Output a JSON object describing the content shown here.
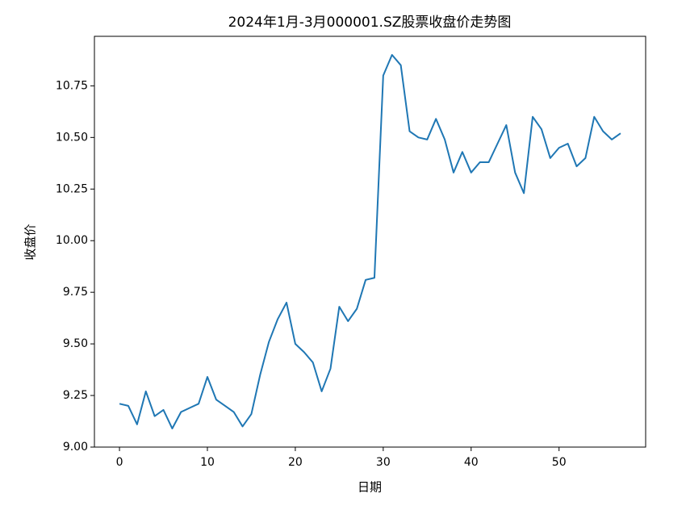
{
  "chart_data": {
    "type": "line",
    "title": "2024年1月-3月000001.SZ股票收盘价走势图",
    "xlabel": "日期",
    "ylabel": "收盘价",
    "x": [
      0,
      1,
      2,
      3,
      4,
      5,
      6,
      7,
      8,
      9,
      10,
      11,
      12,
      13,
      14,
      15,
      16,
      17,
      18,
      19,
      20,
      21,
      22,
      23,
      24,
      25,
      26,
      27,
      28,
      29,
      30,
      31,
      32,
      33,
      34,
      35,
      36,
      37,
      38,
      39,
      40,
      41,
      42,
      43,
      44,
      45,
      46,
      47,
      48,
      49,
      50,
      51,
      52,
      53,
      54,
      55,
      56,
      57
    ],
    "values": [
      9.21,
      9.2,
      9.11,
      9.27,
      9.15,
      9.18,
      9.09,
      9.17,
      9.19,
      9.21,
      9.34,
      9.23,
      9.2,
      9.17,
      9.1,
      9.16,
      9.35,
      9.51,
      9.62,
      9.7,
      9.5,
      9.46,
      9.41,
      9.27,
      9.38,
      9.68,
      9.61,
      9.67,
      9.81,
      9.82,
      10.8,
      10.9,
      10.85,
      10.53,
      10.5,
      10.49,
      10.59,
      10.49,
      10.33,
      10.43,
      10.33,
      10.38,
      10.38,
      10.47,
      10.56,
      10.33,
      10.23,
      10.6,
      10.54,
      10.4,
      10.45,
      10.47,
      10.36,
      10.4,
      10.6,
      10.53,
      10.49,
      10.52
    ],
    "color": "#1f77b4",
    "xlim": [
      -2.85,
      59.85
    ],
    "xticks": [
      0,
      10,
      20,
      30,
      40,
      50
    ],
    "ylim": [
      9.0,
      10.99
    ],
    "yticks": [
      {
        "value": 9.0,
        "label": "9.00"
      },
      {
        "value": 9.25,
        "label": "9.25"
      },
      {
        "value": 9.5,
        "label": "9.50"
      },
      {
        "value": 9.75,
        "label": "9.75"
      },
      {
        "value": 10.0,
        "label": "10.00"
      },
      {
        "value": 10.25,
        "label": "10.25"
      },
      {
        "value": 10.5,
        "label": "10.50"
      },
      {
        "value": 10.75,
        "label": "10.75"
      }
    ]
  }
}
